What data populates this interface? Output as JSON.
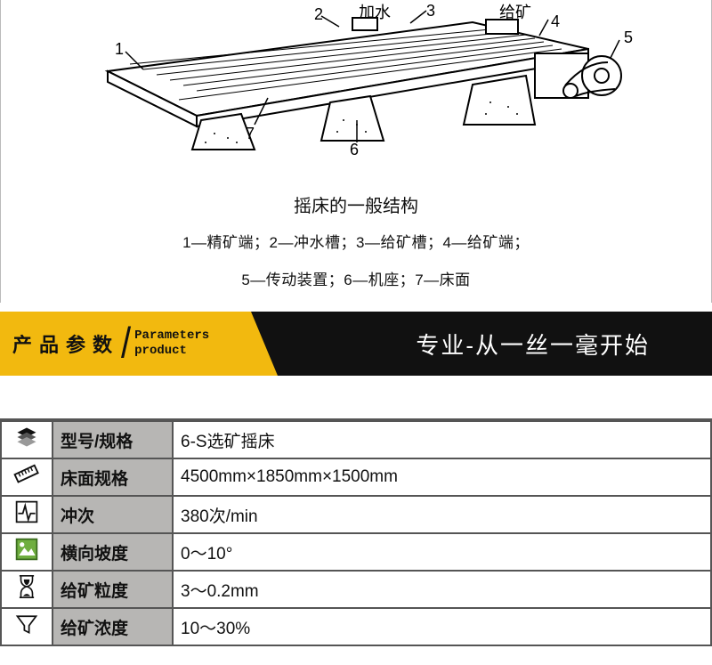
{
  "diagram": {
    "top_labels": {
      "add_water": "加水",
      "feed_ore": "给矿"
    },
    "nums": {
      "n1": "1",
      "n2": "2",
      "n3": "3",
      "n4": "4",
      "n5": "5",
      "n6": "6",
      "n7": "7"
    },
    "caption": "摇床的一般结构",
    "legend_line1": "1—精矿端；2—冲水槽；3—给矿槽；4—给矿端；",
    "legend_line2": "5—传动装置；6—机座；7—床面",
    "colors": {
      "stroke": "#000000",
      "fill": "#ffffff",
      "hatch": "#000000"
    }
  },
  "banner": {
    "cn": "产品参数",
    "en_line1": "Parameters",
    "en_line2": "product",
    "slogan": "专业-从一丝一毫开始",
    "yellow": "#f2b90f",
    "black": "#111111",
    "white": "#ffffff"
  },
  "table": {
    "header_bg": "#b7b6b4",
    "border": "#555555",
    "rows": [
      {
        "icon": "layers",
        "label": "型号/规格",
        "value": "6-S选矿摇床"
      },
      {
        "icon": "ruler",
        "label": "床面规格",
        "value": "4500mm×1850mm×1500mm"
      },
      {
        "icon": "pulse",
        "label": "冲次",
        "value": "380次/min"
      },
      {
        "icon": "picture",
        "label": "横向坡度",
        "value": "0～10°"
      },
      {
        "icon": "hourglass",
        "label": "给矿粒度",
        "value": "3～0.2mm"
      },
      {
        "icon": "funnel",
        "label": "给矿浓度",
        "value": "10～30%"
      }
    ]
  }
}
